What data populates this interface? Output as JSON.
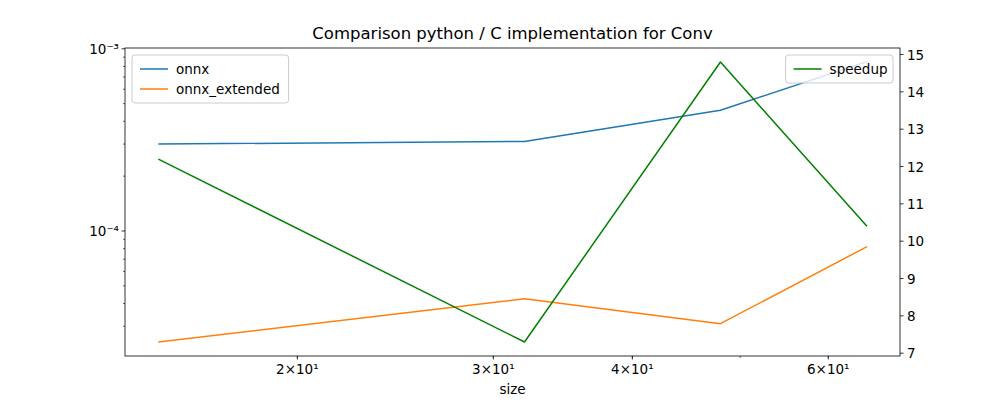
{
  "chart_data": {
    "type": "line",
    "title": "Comparison python / C implementation for Conv",
    "x_label": "size",
    "x": [
      15,
      32,
      48,
      65
    ],
    "log": true,
    "legend": "upper left",
    "xlim": [
      14,
      69.6
    ],
    "xticks": [
      {
        "value": 20,
        "label": "2×10¹"
      },
      {
        "value": 30,
        "label": "3×10¹"
      },
      {
        "value": 40,
        "label": "4×10¹"
      },
      {
        "value": 60,
        "label": "6×10¹"
      }
    ],
    "ylim": [
      2.06e-05,
      0.00101
    ],
    "yticks": [
      {
        "value": 0.0001,
        "label": "10⁻⁴"
      },
      {
        "value": 0.001,
        "label": "10⁻³"
      }
    ],
    "y2lim": [
      6.925,
      15.175
    ],
    "y2ticks": [
      7,
      8,
      9,
      10,
      11,
      12,
      13,
      14,
      15
    ],
    "series": [
      {
        "name": "onnx",
        "color": "#1f77b4",
        "values": [
          0.0003,
          0.00031,
          0.00046,
          0.00085
        ]
      },
      {
        "name": "onnx_extended",
        "color": "#ff7f0e",
        "values": [
          2.46e-05,
          4.25e-05,
          3.1e-05,
          8.2e-05
        ]
      },
      {
        "name": "speedup",
        "color": "#008000",
        "axis": "y2",
        "values": [
          12.2,
          7.3,
          14.8,
          10.4
        ]
      }
    ]
  }
}
